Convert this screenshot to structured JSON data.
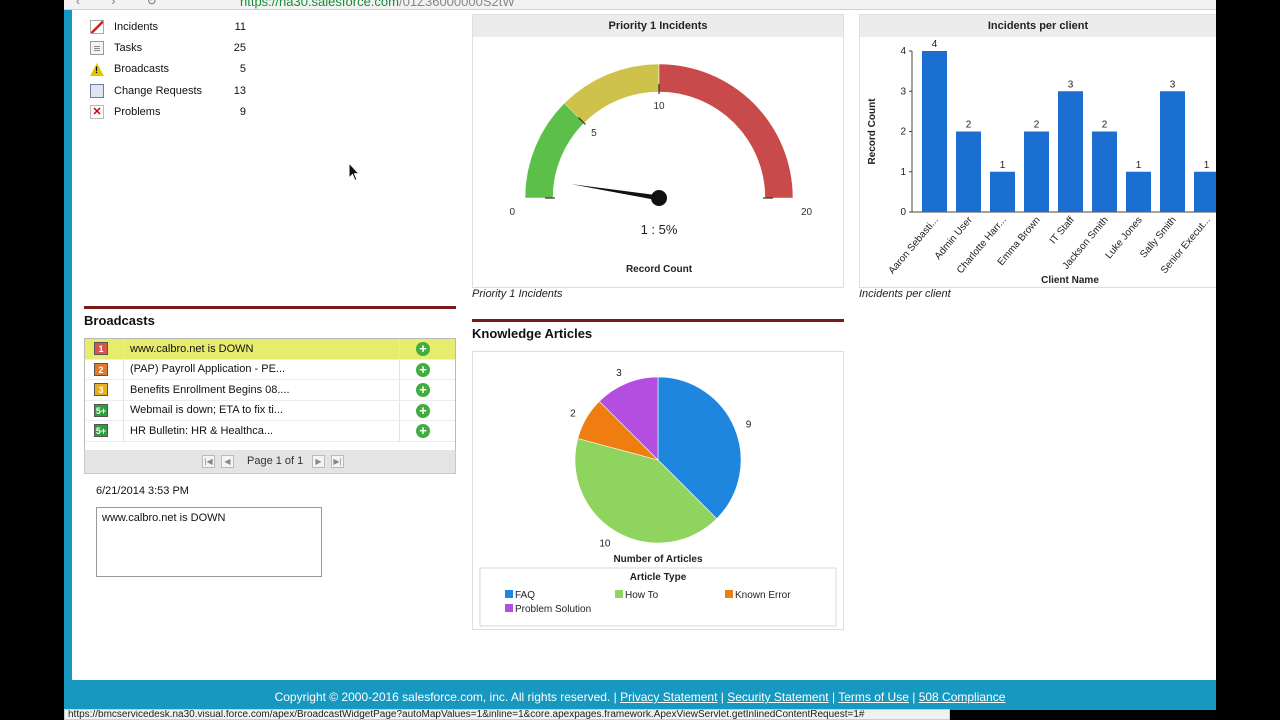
{
  "browser": {
    "url_host": "https://na30.salesforce.com",
    "url_rest": "/01Z36000000S2tW"
  },
  "record_list": [
    {
      "label": "Incidents",
      "count": "11",
      "icon": "incident-icon"
    },
    {
      "label": "Tasks",
      "count": "25",
      "icon": "task-icon"
    },
    {
      "label": "Broadcasts",
      "count": "5",
      "icon": "broadcast-icon"
    },
    {
      "label": "Change Requests",
      "count": "13",
      "icon": "change-request-icon"
    },
    {
      "label": "Problems",
      "count": "9",
      "icon": "problem-icon"
    }
  ],
  "broadcasts": {
    "title": "Broadcasts",
    "rows": [
      {
        "priority": "1",
        "text": "www.calbro.net is DOWN",
        "color": "#d9534f"
      },
      {
        "priority": "2",
        "text": "(PAP) Payroll Application - PE...",
        "color": "#e07a2e"
      },
      {
        "priority": "3",
        "text": "Benefits Enrollment Begins 08....",
        "color": "#e8b020"
      },
      {
        "priority": "5+",
        "text": "Webmail is down; ETA to fix ti...",
        "color": "#2e9e3e"
      },
      {
        "priority": "5+",
        "text": "HR Bulletin: HR & Healthca...",
        "color": "#2e9e3e"
      }
    ],
    "pager": "Page 1 of 1",
    "selected_date": "6/21/2014 3:53 PM",
    "selected_text": "www.calbro.net is DOWN"
  },
  "priority_gauge": {
    "title": "Priority 1 Incidents",
    "caption": "Priority 1 Incidents",
    "readout": "1 : 5%",
    "axis_label": "Record Count",
    "tick_labels": [
      "0",
      "5",
      "10",
      "20"
    ]
  },
  "knowledge": {
    "title": "Knowledge Articles",
    "axis_label": "Number of Articles",
    "legend_title": "Article Type"
  },
  "incidents_chart": {
    "title": "Incidents per client",
    "caption": "Incidents per client",
    "ylabel": "Record Count",
    "xlabel": "Client Name"
  },
  "chart_data": [
    {
      "type": "gauge",
      "title": "Priority 1 Incidents",
      "value": 1,
      "range": [
        0,
        20
      ],
      "bands": [
        {
          "from": 0,
          "to": 5,
          "color": "#5cbf4a"
        },
        {
          "from": 5,
          "to": 10,
          "color": "#cfc24a"
        },
        {
          "from": 10,
          "to": 20,
          "color": "#c94a4a"
        }
      ],
      "ticks": [
        0,
        5,
        10,
        20
      ],
      "readout": "1 : 5%",
      "xlabel": "Record Count"
    },
    {
      "type": "bar",
      "title": "Incidents per client",
      "categories": [
        "Aaron Sebasti...",
        "Admin User",
        "Charlotte Harr...",
        "Emma Brown",
        "IT Staff",
        "Jackson Smith",
        "Luke Jones",
        "Sally Smith",
        "Senior Execut..."
      ],
      "values": [
        4,
        2,
        1,
        2,
        3,
        2,
        1,
        3,
        1
      ],
      "xlabel": "Client Name",
      "ylabel": "Record Count",
      "ylim": [
        0,
        4
      ],
      "yticks": [
        0,
        1,
        2,
        3,
        4
      ],
      "color": "#1a6fd0"
    },
    {
      "type": "pie",
      "title": "Knowledge Articles",
      "categories": [
        "FAQ",
        "How To",
        "Known Error",
        "Problem Solution"
      ],
      "values": [
        9,
        10,
        2,
        3
      ],
      "colors": [
        "#1f86e0",
        "#8fd45e",
        "#ef7d0f",
        "#b44ee0"
      ],
      "xlabel": "Number of Articles",
      "legend_title": "Article Type",
      "legend": "bottom"
    }
  ],
  "footer": {
    "copyright": "Copyright © 2000-2016 salesforce.com, inc. All rights reserved.",
    "links": [
      "Privacy Statement",
      "Security Statement",
      "Terms of Use",
      "508 Compliance"
    ]
  },
  "status_url": "https://bmcservicedesk.na30.visual.force.com/apex/BroadcastWidgetPage?autoMapValues=1&inline=1&core.apexpages.framework.ApexViewServlet.getInlinedContentRequest=1#"
}
